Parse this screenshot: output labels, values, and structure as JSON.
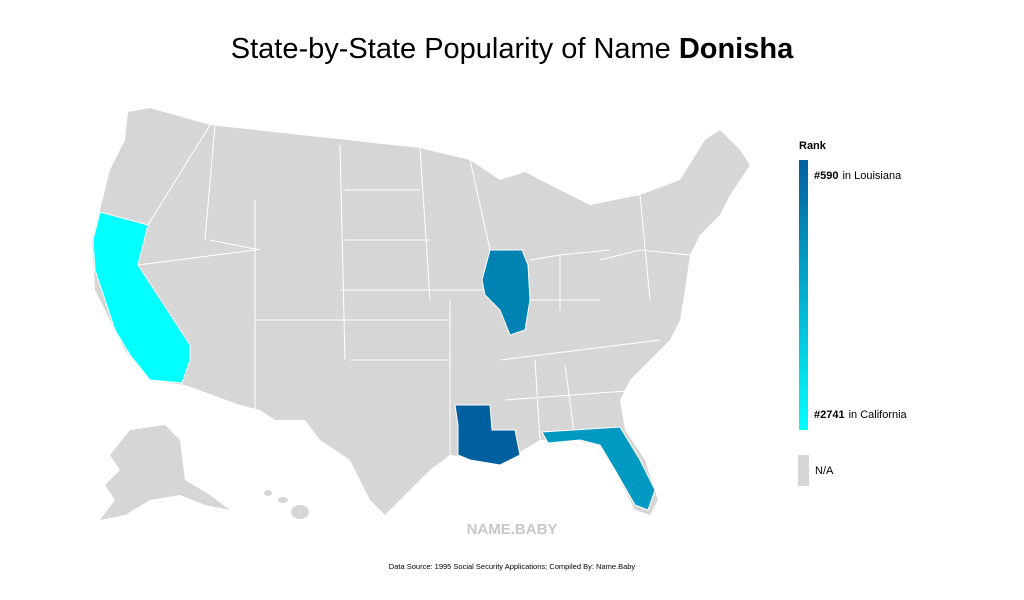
{
  "title": {
    "prefix": "State-by-State Popularity of Name",
    "name": "Donisha"
  },
  "legend": {
    "title": "Rank",
    "top": {
      "value": 590,
      "label": "#590",
      "text": "in Louisiana",
      "color": "#005f9e"
    },
    "bottom": {
      "value": 2741,
      "label": "#2741",
      "text": "in California",
      "color": "#00ffff"
    },
    "na": {
      "label": "N/A",
      "color": "#d6d6d6"
    }
  },
  "shaded_states": [
    {
      "rank": 2741
    },
    {
      "rank": 1060
    },
    {
      "rank": 590
    },
    {
      "rank": 1370
    }
  ],
  "watermark": "NAME.BABY",
  "footer": "Data Source: 1995 Social Security Applications; Compiled By: Name.Baby"
}
